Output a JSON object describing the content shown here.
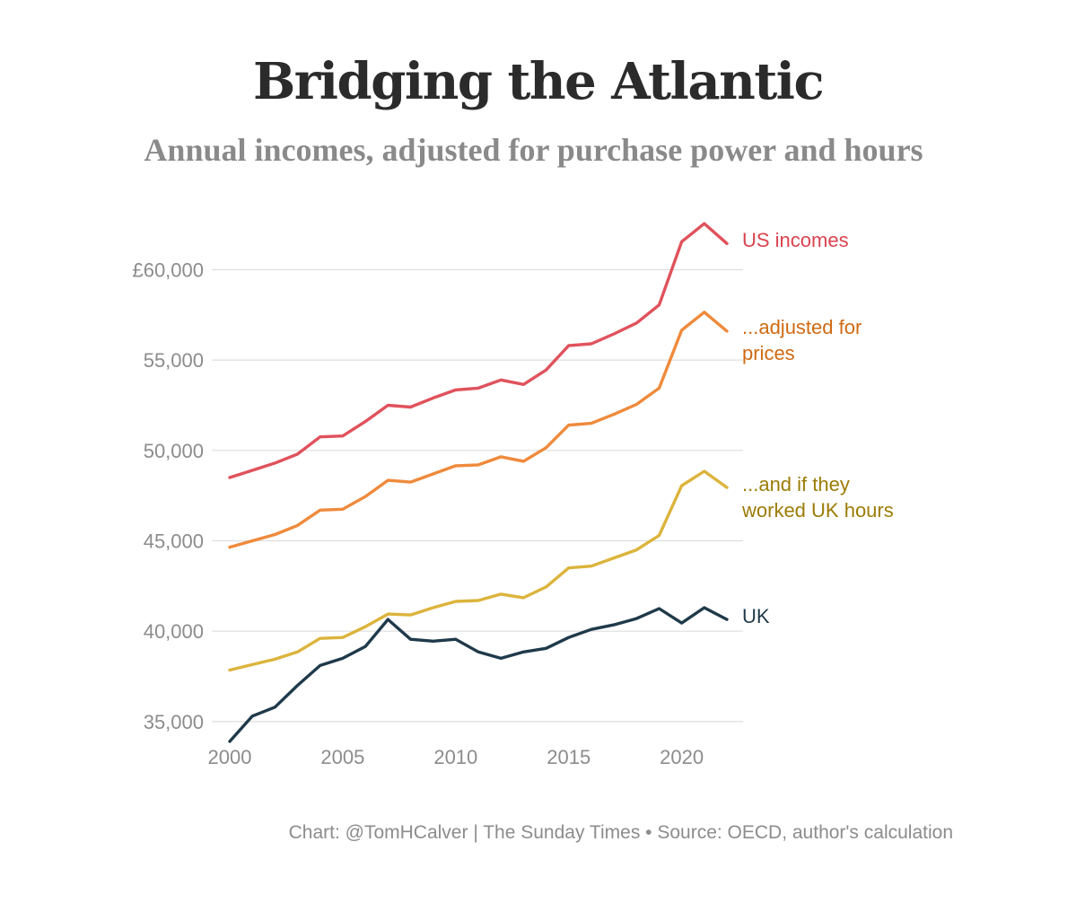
{
  "chart_data": {
    "type": "line",
    "title": "Bridging the Atlantic",
    "subtitle": "Annual incomes, adjusted for purchase power and hours",
    "source": "Chart: @TomHCalver | The Sunday Times • Source: OECD, author's calculation",
    "x": [
      2000,
      2001,
      2002,
      2003,
      2004,
      2005,
      2006,
      2007,
      2008,
      2009,
      2010,
      2011,
      2012,
      2013,
      2014,
      2015,
      2016,
      2017,
      2018,
      2019,
      2020,
      2021,
      2022
    ],
    "xlim": [
      2000,
      2022
    ],
    "ylim": [
      34000,
      63500
    ],
    "x_ticks": [
      {
        "value": 2000,
        "label": "2000"
      },
      {
        "value": 2005,
        "label": "2005"
      },
      {
        "value": 2010,
        "label": "2010"
      },
      {
        "value": 2015,
        "label": "2015"
      },
      {
        "value": 2020,
        "label": "2020"
      }
    ],
    "y_ticks": [
      {
        "value": 35000,
        "label": "35,000"
      },
      {
        "value": 40000,
        "label": "40,000"
      },
      {
        "value": 45000,
        "label": "45,000"
      },
      {
        "value": 50000,
        "label": "50,000"
      },
      {
        "value": 55000,
        "label": "55,000"
      },
      {
        "value": 60000,
        "label": "£60,000"
      }
    ],
    "grid": true,
    "series": [
      {
        "name": "US incomes",
        "label_lines": [
          "US incomes"
        ],
        "color": "#e0525c",
        "label_color": "#d9434f",
        "values": [
          48500,
          48900,
          49300,
          49800,
          50750,
          50800,
          51600,
          52500,
          52400,
          52900,
          53350,
          53450,
          53900,
          53650,
          54450,
          55800,
          55900,
          56450,
          57050,
          58050,
          61550,
          62550,
          61450
        ]
      },
      {
        "name": "...adjusted for prices",
        "label_lines": [
          "...adjusted for",
          "prices"
        ],
        "color": "#ef8a3c",
        "label_color": "#d06a12",
        "values": [
          44650,
          45000,
          45350,
          45850,
          46700,
          46750,
          47450,
          48350,
          48250,
          48700,
          49150,
          49200,
          49650,
          49400,
          50150,
          51400,
          51500,
          52000,
          52550,
          53450,
          56650,
          57650,
          56600
        ]
      },
      {
        "name": "...and if they worked UK hours",
        "label_lines": [
          "...and if they",
          "worked UK hours"
        ],
        "color": "#dcb43c",
        "label_color": "#9c7c06",
        "values": [
          37850,
          38150,
          38450,
          38850,
          39600,
          39650,
          40250,
          40950,
          40900,
          41300,
          41650,
          41700,
          42050,
          41850,
          42450,
          43500,
          43600,
          44050,
          44500,
          45300,
          48050,
          48850,
          47950
        ]
      },
      {
        "name": "UK",
        "label_lines": [
          "UK"
        ],
        "color": "#1f3a4a",
        "label_color": "#1f3a4a",
        "values": [
          33900,
          35300,
          35800,
          37000,
          38100,
          38500,
          39150,
          40650,
          39550,
          39450,
          39550,
          38850,
          38500,
          38850,
          39050,
          39650,
          40100,
          40350,
          40700,
          41250,
          40450,
          41300,
          40650
        ]
      }
    ]
  }
}
